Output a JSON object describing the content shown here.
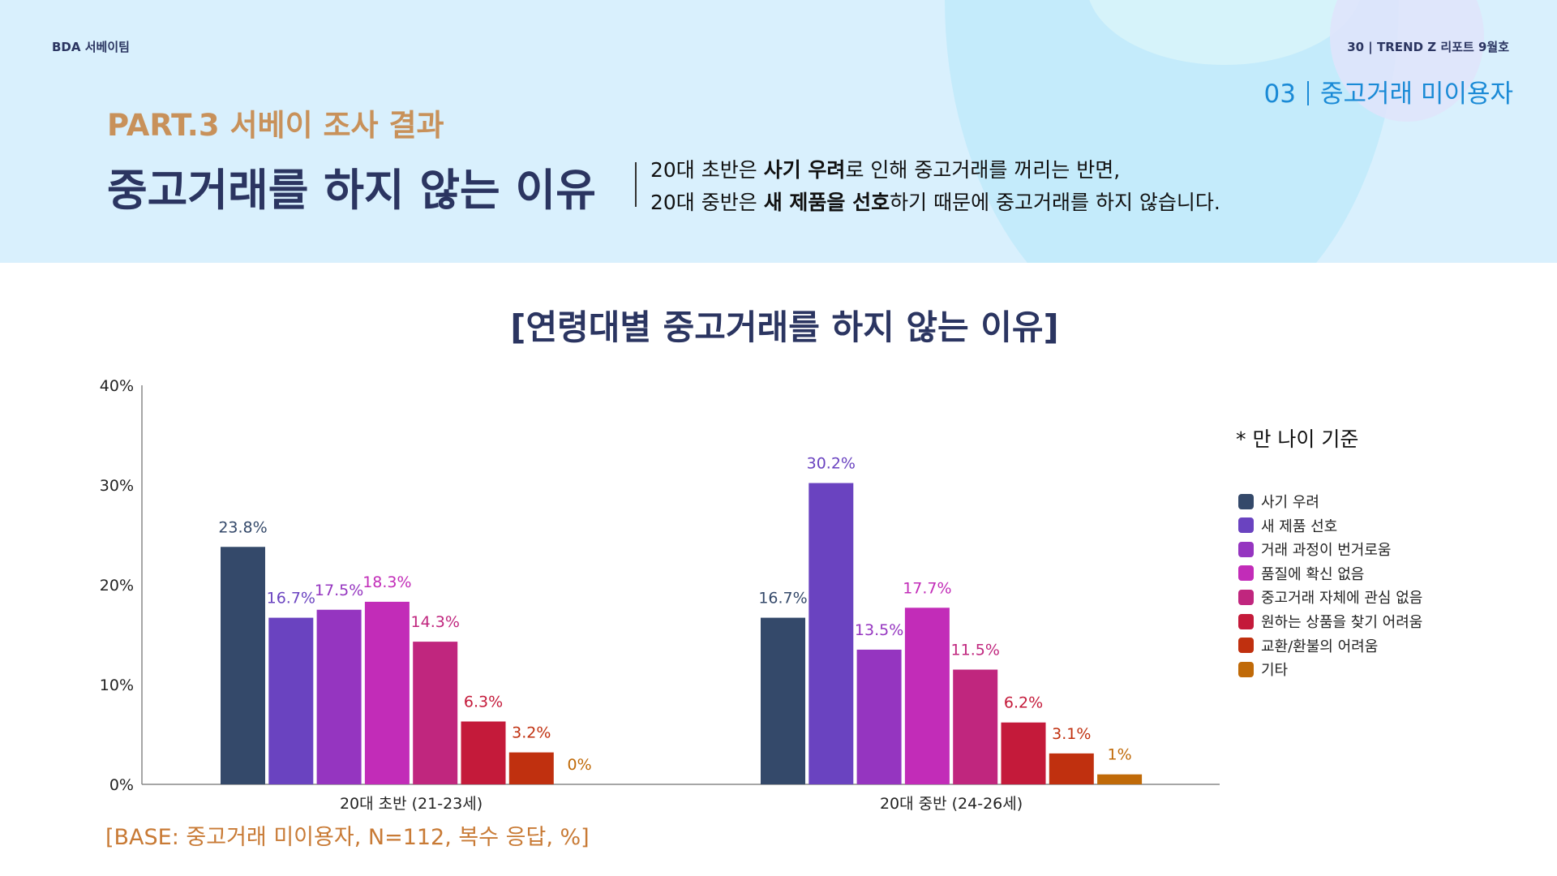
{
  "header": {
    "team": "BDA 서베이팀",
    "issue": "30 | TREND Z 리포트 9월호",
    "section_num": "03",
    "section_name": "중고거래 미이용자",
    "part": "PART.3 서베이 조사 결과",
    "title": "중고거래를 하지 않는 이유",
    "desc_line1": {
      "a": "20대 초반은 ",
      "b": "사기 우려",
      "c": "로 인해 중고거래를 꺼리는 반면,"
    },
    "desc_line2": {
      "a": "20대 중반은 ",
      "b": "새 제품을 선호",
      "c": "하기 때문에 중고거래를 하지 않습니다."
    }
  },
  "note": "* 만 나이 기준",
  "base": "[BASE: 중고거래 미이용자, N=112, 복수 응답, %]",
  "chart_data": {
    "type": "bar",
    "title": "[연령대별 중고거래를 하지 않는 이유]",
    "categories": [
      "20대 초반 (21-23세)",
      "20대 중반 (24-26세)"
    ],
    "ylim": [
      0,
      40
    ],
    "yticks": [
      "0%",
      "10%",
      "20%",
      "30%",
      "40%"
    ],
    "grid": false,
    "legend": "right",
    "series": [
      {
        "name": "사기 우려",
        "color": "#34496a",
        "values": [
          23.8,
          16.7
        ],
        "labels": [
          "23.8%",
          "16.7%"
        ]
      },
      {
        "name": "새 제품 선호",
        "color": "#6a43c0",
        "values": [
          16.7,
          30.2
        ],
        "labels": [
          "16.7%",
          "30.2%"
        ]
      },
      {
        "name": "거래 과정이 번거로움",
        "color": "#9535c0",
        "values": [
          17.5,
          13.5
        ],
        "labels": [
          "17.5%",
          "13.5%"
        ]
      },
      {
        "name": "품질에 확신 없음",
        "color": "#c22cb8",
        "values": [
          18.3,
          17.7
        ],
        "labels": [
          "18.3%",
          "17.7%"
        ]
      },
      {
        "name": "중고거래 자체에 관심 없음",
        "color": "#c0267e",
        "values": [
          14.3,
          11.5
        ],
        "labels": [
          "14.3%",
          "11.5%"
        ]
      },
      {
        "name": "원하는 상품을 찾기 어려움",
        "color": "#c41a3a",
        "values": [
          6.3,
          6.2
        ],
        "labels": [
          "6.3%",
          "6.2%"
        ]
      },
      {
        "name": "교환/환불의 어려움",
        "color": "#c0300f",
        "values": [
          3.2,
          3.1
        ],
        "labels": [
          "3.2%",
          "3.1%"
        ]
      },
      {
        "name": "기타",
        "color": "#c06a08",
        "values": [
          0,
          1
        ],
        "labels": [
          "0%",
          "1%"
        ]
      }
    ]
  }
}
